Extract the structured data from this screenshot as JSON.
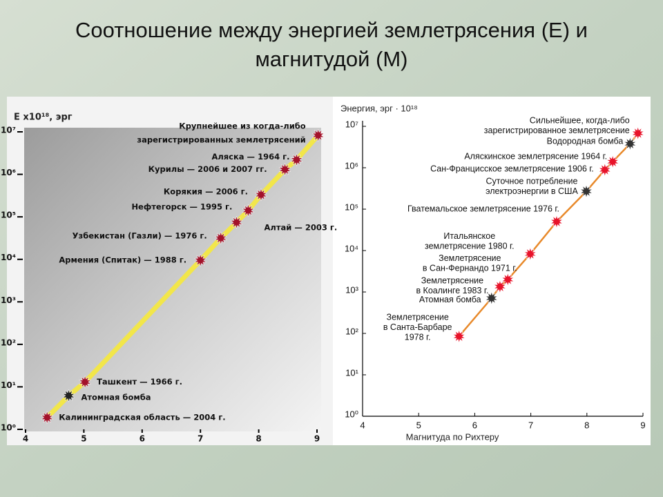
{
  "title": [
    "Соотношение между энергией землетрясения (E) и",
    "магнитудой (M)"
  ],
  "chart_data": [
    {
      "type": "scatter",
      "y_label": "E x10¹⁸, эрг",
      "log_y": true,
      "xlim": [
        4,
        9
      ],
      "xticks": [
        4,
        5,
        6,
        7,
        8,
        9
      ],
      "ylim": [
        1,
        10000000
      ],
      "yticks": [
        {
          "value": 1,
          "label": "10⁰"
        },
        {
          "value": 10,
          "label": "10¹"
        },
        {
          "value": 100,
          "label": "10²"
        },
        {
          "value": 1000,
          "label": "10³"
        },
        {
          "value": 10000,
          "label": "10⁴"
        },
        {
          "value": 100000,
          "label": "10⁵"
        },
        {
          "value": 1000000,
          "label": "10⁶"
        },
        {
          "value": 10000000,
          "label": "10⁷"
        }
      ],
      "line_color": "#f2e64a",
      "x": [
        4.37,
        4.74,
        5.02,
        7.0,
        7.35,
        7.62,
        7.82,
        8.04,
        8.45,
        8.65,
        9.02
      ],
      "values": [
        1.9,
        6.2,
        13,
        9500,
        31600,
        74000,
        141000,
        331000,
        1300000,
        2200000,
        8300000
      ],
      "colors": [
        "#a3122a",
        "#222222",
        "#a3122a",
        "#a3122a",
        "#a3122a",
        "#a3122a",
        "#a3122a",
        "#a3122a",
        "#a3122a",
        "#a3122a",
        "#a3122a"
      ],
      "labels": [
        [
          "Калининградская область — 2004 г."
        ],
        [
          "Атомная бомба"
        ],
        [
          "Ташкент — 1966 г."
        ],
        [
          "Армения (Спитак) — 1988 г."
        ],
        [
          "Узбекистан (Газли) — 1976 г."
        ],
        [
          "Алтай — 2003 г."
        ],
        [
          "Нефтегорск — 1995 г."
        ],
        [
          "Корякия — 2006 г."
        ],
        [
          "Курилы — 2006 и 2007 гг."
        ],
        [
          "Аляска — 1964 г."
        ],
        [
          "Крупнейшее из когда-либо",
          "зарегистрированных землетрясений"
        ]
      ]
    },
    {
      "type": "scatter",
      "y_label": "Энергия, эрг · 10¹⁸",
      "x_label": "Магнитуда по Рихтеру",
      "log_y": true,
      "xlim": [
        4,
        9
      ],
      "xticks": [
        4,
        5,
        6,
        7,
        8,
        9
      ],
      "ylim": [
        1,
        10000000
      ],
      "yticks": [
        {
          "value": 1,
          "label": "10⁰"
        },
        {
          "value": 10,
          "label": "10¹"
        },
        {
          "value": 100,
          "label": "10²"
        },
        {
          "value": 1000,
          "label": "10³"
        },
        {
          "value": 10000,
          "label": "10⁴"
        },
        {
          "value": 100000,
          "label": "10⁵"
        },
        {
          "value": 1000000,
          "label": "10⁶"
        },
        {
          "value": 10000000,
          "label": "10⁷"
        }
      ],
      "line_color": "#e8892a",
      "x": [
        5.72,
        6.3,
        6.45,
        6.59,
        6.99,
        7.46,
        7.99,
        8.32,
        8.46,
        8.77,
        8.91
      ],
      "values": [
        85,
        710,
        1350,
        2000,
        8300,
        50000,
        270000,
        890000,
        1400000,
        3800000,
        6800000
      ],
      "colors": [
        "#e8132a",
        "#333333",
        "#e8132a",
        "#e8132a",
        "#e8132a",
        "#e8132a",
        "#333333",
        "#e8132a",
        "#e8132a",
        "#333333",
        "#e8132a"
      ],
      "labels": [
        [
          "Землетрясение",
          "в Санта-Барбаре",
          "1978 г."
        ],
        [
          "Атомная бомба"
        ],
        [
          "Землетрясение",
          "в Коалинге 1983 г."
        ],
        [
          "Землетрясение",
          "в Сан-Фернандо 1971 г."
        ],
        [
          "Итальянское",
          "землетрясение 1980 г."
        ],
        [
          "Гватемальское землетрясение 1976 г."
        ],
        [
          "Суточное потребление",
          "электроэнергии в США"
        ],
        [
          "Сан-Францисское землетрясение 1906 г."
        ],
        [
          "Аляскинское землетрясение 1964 г."
        ],
        [
          "Водородная бомба"
        ],
        [
          "Сильнейшее, когда-либо",
          "зарегистрированное землетрясение"
        ]
      ]
    }
  ]
}
